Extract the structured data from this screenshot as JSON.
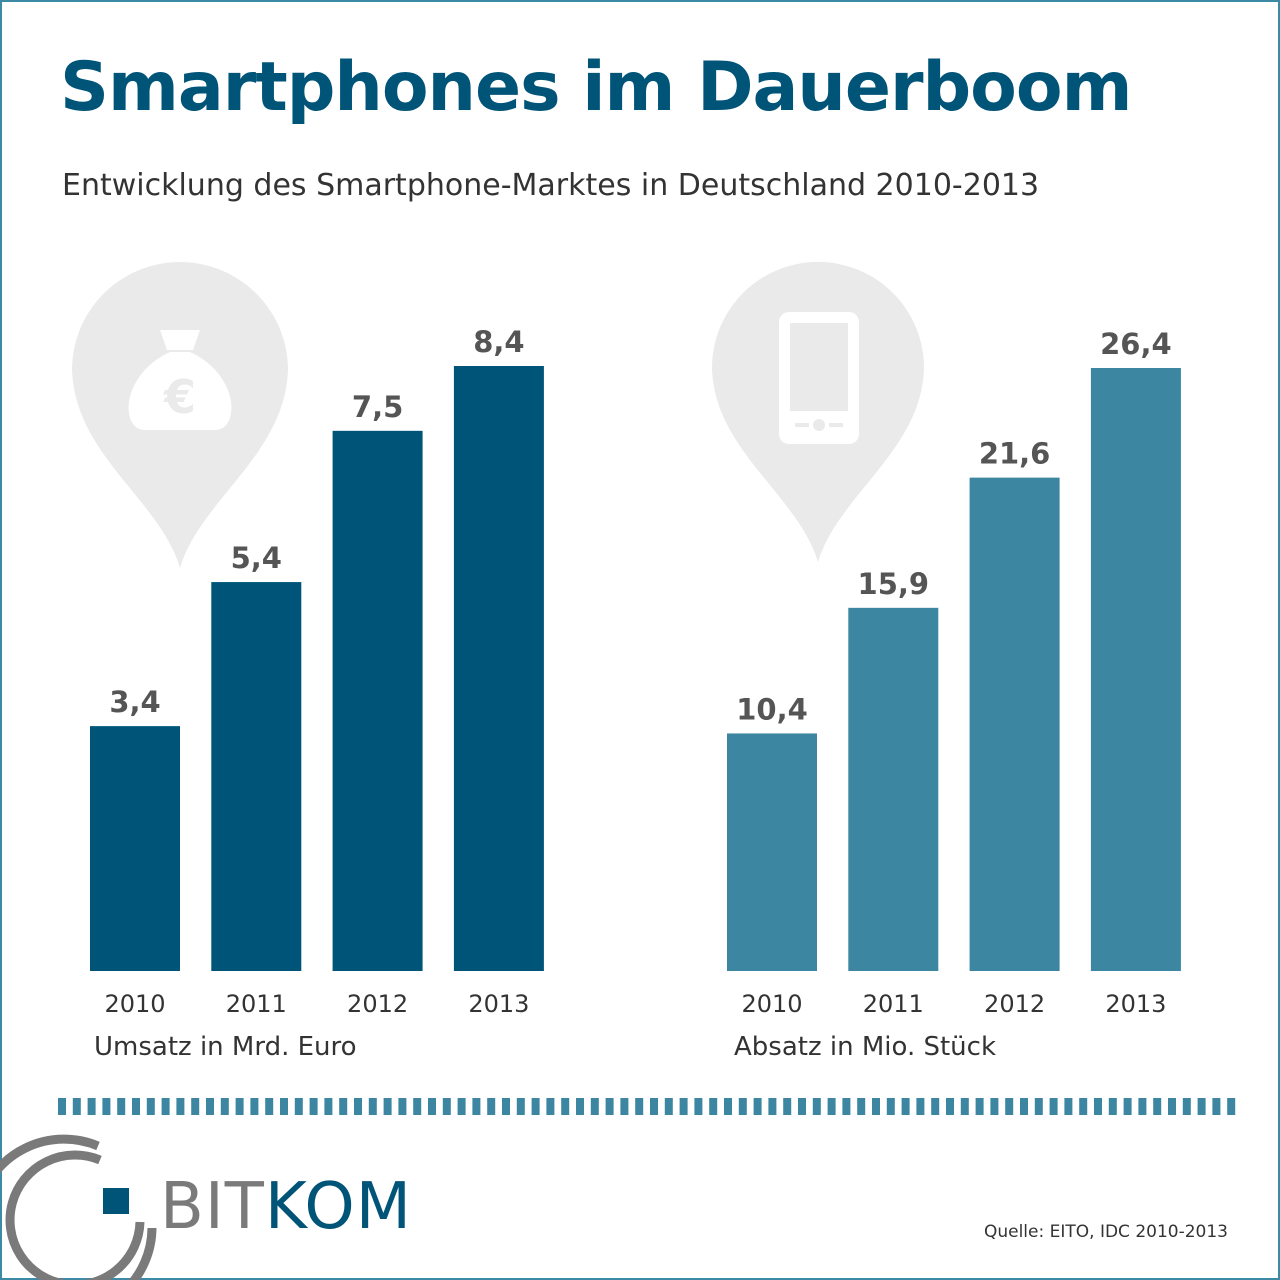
{
  "title": "Smartphones im Dauerboom",
  "subtitle": "Entwicklung des Smartphone-Marktes in Deutschland 2010-2013",
  "chart_data": [
    {
      "type": "bar",
      "series_label": "Umsatz in Mrd. Euro",
      "categories": [
        "2010",
        "2011",
        "2012",
        "2013"
      ],
      "values": [
        3.4,
        5.4,
        7.5,
        8.4
      ],
      "value_labels": [
        "3,4",
        "5,4",
        "7,5",
        "8,4"
      ],
      "ylim": [
        0,
        8.4
      ],
      "color": "#005478",
      "icon": "money-bag-euro-icon"
    },
    {
      "type": "bar",
      "series_label": "Absatz in Mio. Stück",
      "categories": [
        "2010",
        "2011",
        "2012",
        "2013"
      ],
      "values": [
        10.4,
        15.9,
        21.6,
        26.4
      ],
      "value_labels": [
        "10,4",
        "15,9",
        "21,6",
        "26,4"
      ],
      "ylim": [
        0,
        26.4
      ],
      "color": "#3d86a2",
      "icon": "smartphone-icon"
    }
  ],
  "logo": {
    "part1": "BIT",
    "part2": "KOM"
  },
  "source": "Quelle: EITO, IDC 2010-2013",
  "colors": {
    "title": "#005478",
    "dashes": "#3d86a2",
    "pin": "#eaeaea",
    "icon": "#ffffff",
    "logo_gray": "#7a7a7a"
  }
}
